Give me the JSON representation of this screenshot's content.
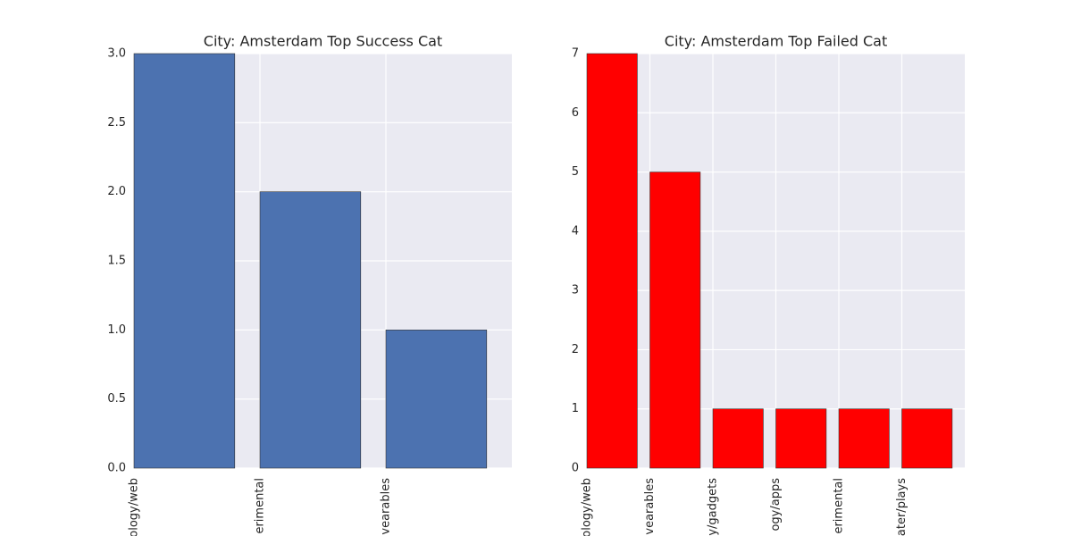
{
  "chart_data": [
    {
      "type": "bar",
      "title": "City: Amsterdam Top Success Cat",
      "categories": [
        "ology/web",
        "erimental",
        "vearables"
      ],
      "values": [
        3,
        2,
        1
      ],
      "color": "#4c72b0",
      "ylim": [
        0,
        3
      ],
      "yticks": [
        {
          "value": 0,
          "label": "0.0"
        },
        {
          "value": 0.5,
          "label": "0.5"
        },
        {
          "value": 1,
          "label": "1.0"
        },
        {
          "value": 1.5,
          "label": "1.5"
        },
        {
          "value": 2,
          "label": "2.0"
        },
        {
          "value": 2.5,
          "label": "2.5"
        },
        {
          "value": 3,
          "label": "3.0"
        }
      ],
      "grid": true
    },
    {
      "type": "bar",
      "title": "City: Amsterdam Top Failed Cat",
      "categories": [
        "ology/web",
        "vearables",
        "y/gadgets",
        "ogy/apps",
        "erimental",
        "ater/plays"
      ],
      "values": [
        7,
        5,
        1,
        1,
        1,
        1
      ],
      "color": "#ff0000",
      "ylim": [
        0,
        7
      ],
      "yticks": [
        0,
        1,
        2,
        3,
        4,
        5,
        6,
        7
      ],
      "grid": true
    }
  ]
}
